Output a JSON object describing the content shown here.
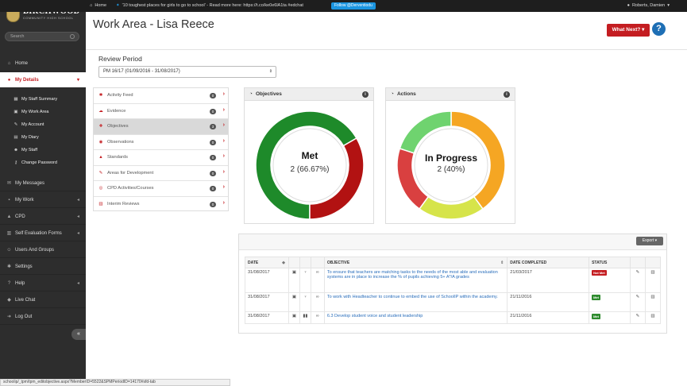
{
  "topbar": {
    "home": "Home",
    "tweet": "'10 toughest places for girls to go to school' - Read more here: https://t.co/ke0e6lA1ta #edchat",
    "follow": "Follow @Derventiodu",
    "user": "Roberts, Damien"
  },
  "sidebar": {
    "school_name": "BIRCHWOOD",
    "school_sub": "COMMUNITY HIGH SCHOOL",
    "search_placeholder": "Search",
    "items": [
      {
        "label": "Home",
        "icon": "home-icon"
      },
      {
        "label": "My Details",
        "icon": "user-icon"
      },
      {
        "label": "My Messages",
        "icon": "mail-icon"
      },
      {
        "label": "My Work",
        "icon": "briefcase-icon"
      },
      {
        "label": "CPD",
        "icon": "graduation-icon"
      },
      {
        "label": "Self Evaluation Forms",
        "icon": "chart-icon"
      },
      {
        "label": "Users And Groups",
        "icon": "users-icon"
      },
      {
        "label": "Settings",
        "icon": "wrench-icon"
      },
      {
        "label": "Help",
        "icon": "help-icon"
      },
      {
        "label": "Live Chat",
        "icon": "chat-icon"
      },
      {
        "label": "Log Out",
        "icon": "logout-icon"
      }
    ],
    "sub_items": [
      {
        "label": "My Staff Summary",
        "icon": "summary-icon"
      },
      {
        "label": "My Work Area",
        "icon": "work-area-icon"
      },
      {
        "label": "My Account",
        "icon": "account-icon"
      },
      {
        "label": "My Diary",
        "icon": "calendar-icon"
      },
      {
        "label": "My Staff",
        "icon": "staff-icon"
      },
      {
        "label": "Change Password",
        "icon": "key-icon"
      }
    ]
  },
  "status_url": "schoolip/_tpm/tpm_editobjective.aspx?MemberID=5522&SPMPeriodID=14170#sfd-tab",
  "main": {
    "title": "Work Area - Lisa Reece",
    "what_next": "What Next?",
    "review_period_label": "Review Period",
    "review_period_value": "PM 16/17 (01/09/2016 - 31/08/2017)"
  },
  "menu": [
    {
      "label": "Activity Feed",
      "count": "0",
      "icon": "feed-icon"
    },
    {
      "label": "Evidence",
      "count": "0",
      "icon": "evidence-icon"
    },
    {
      "label": "Objectives",
      "count": "3",
      "icon": "objectives-icon"
    },
    {
      "label": "Observations",
      "count": "0",
      "icon": "observations-icon"
    },
    {
      "label": "Standards",
      "count": "0",
      "icon": "standards-icon"
    },
    {
      "label": "Areas for Development",
      "count": "0",
      "icon": "development-icon"
    },
    {
      "label": "CPD Activities/Courses",
      "count": "0",
      "icon": "cpd-icon"
    },
    {
      "label": "Interim Reviews",
      "count": "0",
      "icon": "reviews-icon"
    }
  ],
  "objectives_panel": {
    "title": "Objectives",
    "center_label": "Met",
    "center_value": "2 (66.67%)"
  },
  "actions_panel": {
    "title": "Actions",
    "center_label": "In Progress",
    "center_value": "2 (40%)"
  },
  "chart_data": [
    {
      "type": "pie",
      "title": "Objectives",
      "slices": [
        {
          "label": "Met",
          "value": 2,
          "color": "#1e8a2a"
        },
        {
          "label": "Not Met",
          "value": 1,
          "color": "#b21212"
        }
      ]
    },
    {
      "type": "pie",
      "title": "Actions",
      "slices": [
        {
          "label": "In Progress",
          "value": 2,
          "color": "#f5a623"
        },
        {
          "value": 1,
          "color": "#d6e44a"
        },
        {
          "value": 1,
          "color": "#d94040"
        },
        {
          "value": 1,
          "color": "#6fd36f"
        }
      ]
    }
  ],
  "table": {
    "export_label": "Export",
    "headers": {
      "date": "DATE",
      "objective": "OBJECTIVE",
      "completed": "DATE COMPLETED",
      "status": "STATUS"
    },
    "rows": [
      {
        "date": "31/08/2017",
        "objective": "To ensure that teachers are matching tasks to the needs of the most able and evaluation systems are in place to increase the % of pupils achieving 5+ A*/A grades",
        "completed": "21/03/2017",
        "status": "Not Met",
        "status_color": "#c41d21",
        "type_icon": "link-icon"
      },
      {
        "date": "31/08/2017",
        "objective": "To work with Headteacher to continue to embed the use of SchoolIP within the academy.",
        "completed": "21/11/2016",
        "status": "Met",
        "status_color": "#2e8b2e",
        "type_icon": "link-icon"
      },
      {
        "date": "31/08/2017",
        "objective": "6.3 Develop student voice and student leadership",
        "completed": "21/11/2016",
        "status": "Met",
        "status_color": "#2e8b2e",
        "type_icon": "bar-chart-icon"
      }
    ]
  }
}
